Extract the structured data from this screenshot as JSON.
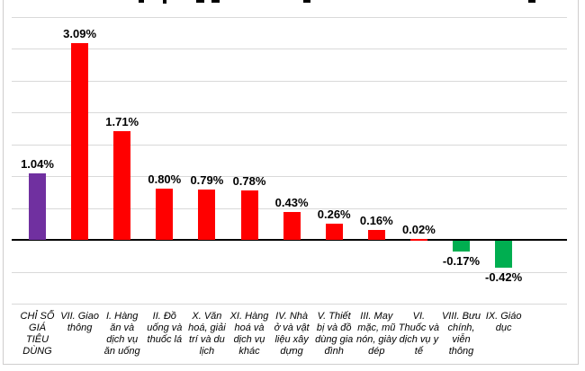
{
  "chart_data": {
    "type": "bar",
    "title": "",
    "xlabel": "",
    "ylabel": "",
    "unit": "%",
    "ylim": [
      -1.0,
      3.5
    ],
    "gridline_step": 0.5,
    "grid": true,
    "legend": false,
    "keys": [
      "cpi-overall",
      "transport",
      "food-and-catering-services",
      "beverages-and-tobacco",
      "culture-entertainment-tourism",
      "other-goods-and-services",
      "housing-and-construction-materials",
      "household-equipment-and-appliances",
      "garments-hats-footwear",
      "medicine-and-health-services",
      "post-and-telecommunications",
      "education"
    ],
    "categories": [
      "CHỈ SỐ GIÁ TIÊU DÙNG",
      "VII. Giao thông",
      "I. Hàng ăn và dịch vụ ăn uống",
      "II. Đồ uống và thuốc lá",
      "X. Văn hoá, giải trí và du lịch",
      "XI. Hàng hoá và dịch vụ khác",
      "IV. Nhà ở và vật liệu xây dựng",
      "V. Thiết bị và đồ dùng gia đình",
      "III. May mặc, mũ nón, giày dép",
      "VI. Thuốc và dịch vụ y tế",
      "VIII. Bưu chính, viễn thông",
      "IX. Giáo dục"
    ],
    "category_label_lines": [
      [
        "CHỈ SỐ",
        "GIÁ",
        "TIÊU",
        "DÙNG"
      ],
      [
        "VII. Giao",
        "thông"
      ],
      [
        "I. Hàng",
        "ăn và",
        "dịch vụ",
        "ăn uống"
      ],
      [
        "II. Đồ",
        "uống và",
        "thuốc lá"
      ],
      [
        "X. Văn",
        "hoá, giải",
        "trí và du",
        "lịch"
      ],
      [
        "XI. Hàng",
        "hoá và",
        "dịch vụ",
        "khác"
      ],
      [
        "IV. Nhà",
        "ở và vật",
        "liệu xây",
        "dựng"
      ],
      [
        "V. Thiết",
        "bị và đồ",
        "dùng gia",
        "đình"
      ],
      [
        "III. May",
        "mặc, mũ",
        "nón, giày",
        "dép"
      ],
      [
        "VI.",
        "Thuốc và",
        "dịch vụ y",
        "tế"
      ],
      [
        "VIII. Bưu",
        "chính,",
        "viễn",
        "thông"
      ],
      [
        "IX. Giáo",
        "dục"
      ]
    ],
    "values": [
      1.04,
      3.09,
      1.71,
      0.8,
      0.79,
      0.78,
      0.43,
      0.26,
      0.16,
      0.02,
      -0.17,
      -0.42
    ],
    "value_labels": [
      "1.04%",
      "3.09%",
      "1.71%",
      "0.80%",
      "0.79%",
      "0.78%",
      "0.43%",
      "0.26%",
      "0.16%",
      "0.02%",
      "-0.17%",
      "-0.42%"
    ],
    "bar_colors": [
      "#7030A0",
      "#FF0000",
      "#FF0000",
      "#FF0000",
      "#FF0000",
      "#FF0000",
      "#FF0000",
      "#FF0000",
      "#FF0000",
      "#FF0000",
      "#00AE50",
      "#00AE50"
    ]
  },
  "colors": {
    "cpi_total": "#7030A0",
    "increase": "#FF0000",
    "decrease": "#00AE50",
    "gridline": "#D9D9D9",
    "zero_axis": "#000000",
    "chart_border": "#CFCDCD",
    "background": "#FFFFFF"
  }
}
